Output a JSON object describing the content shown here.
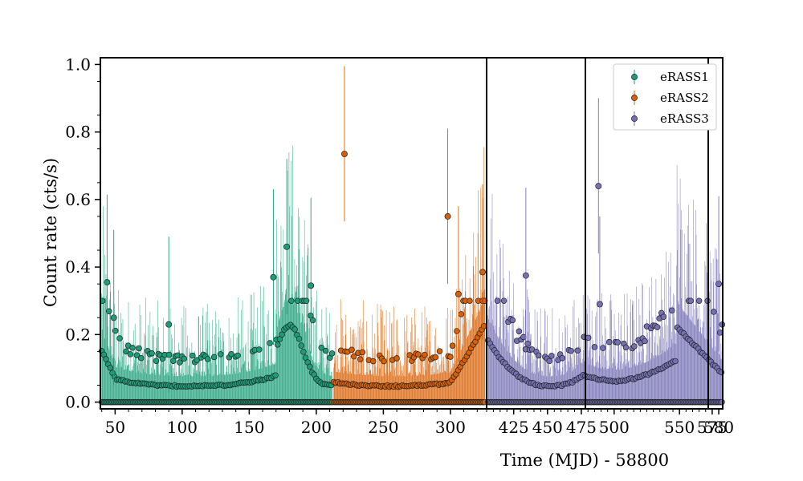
{
  "chart_data": {
    "type": "scatter",
    "xlabel": "Time (MJD) - 58800",
    "ylabel": "Count rate (cts/s)",
    "ylim": [
      -0.02,
      1.02
    ],
    "grid": false,
    "legend_position": "top-right",
    "y_ticks": [
      "0.0",
      "0.2",
      "0.4",
      "0.6",
      "0.8",
      "1.0"
    ],
    "panels": [
      {
        "xlim": [
          39,
          327
        ],
        "x_ticks": [
          "50",
          "100",
          "150",
          "200",
          "250",
          "300"
        ]
      },
      {
        "xlim": [
          405,
          478
        ],
        "x_ticks": [
          "425",
          "450",
          "475"
        ]
      },
      {
        "xlim": [
          478,
          572
        ],
        "x_ticks": [
          "500",
          "550"
        ]
      },
      {
        "xlim": [
          572,
          583
        ],
        "x_ticks": [
          "575",
          "580"
        ]
      }
    ],
    "series": [
      {
        "name": "eRASS1",
        "color": "#1b9e77",
        "x_range": [
          40,
          212
        ]
      },
      {
        "name": "eRASS2",
        "color": "#d95f02",
        "x_range": [
          213,
          326
        ]
      },
      {
        "name": "eRASS3",
        "color": "#7570b3",
        "x_range": [
          406,
          583
        ]
      }
    ],
    "outliers": [
      {
        "series": "eRASS1",
        "x": 44,
        "y": 0.355
      },
      {
        "series": "eRASS1",
        "x": 49,
        "y": 0.25
      },
      {
        "series": "eRASS1",
        "x": 90,
        "y": 0.23
      },
      {
        "series": "eRASS1",
        "x": 168,
        "y": 0.37
      },
      {
        "series": "eRASS1",
        "x": 178,
        "y": 0.46
      },
      {
        "series": "eRASS1",
        "x": 196,
        "y": 0.345
      },
      {
        "series": "eRASS2",
        "x": 221,
        "y": 0.735
      },
      {
        "series": "eRASS2",
        "x": 298,
        "y": 0.55
      },
      {
        "series": "eRASS2",
        "x": 324,
        "y": 0.385
      },
      {
        "series": "eRASS2",
        "x": 306,
        "y": 0.32
      },
      {
        "series": "eRASS3",
        "x": 434,
        "y": 0.375
      },
      {
        "series": "eRASS3",
        "x": 488,
        "y": 0.64
      },
      {
        "series": "eRASS3",
        "x": 489,
        "y": 0.29
      },
      {
        "series": "eRASS3",
        "x": 580,
        "y": 0.35
      }
    ]
  }
}
